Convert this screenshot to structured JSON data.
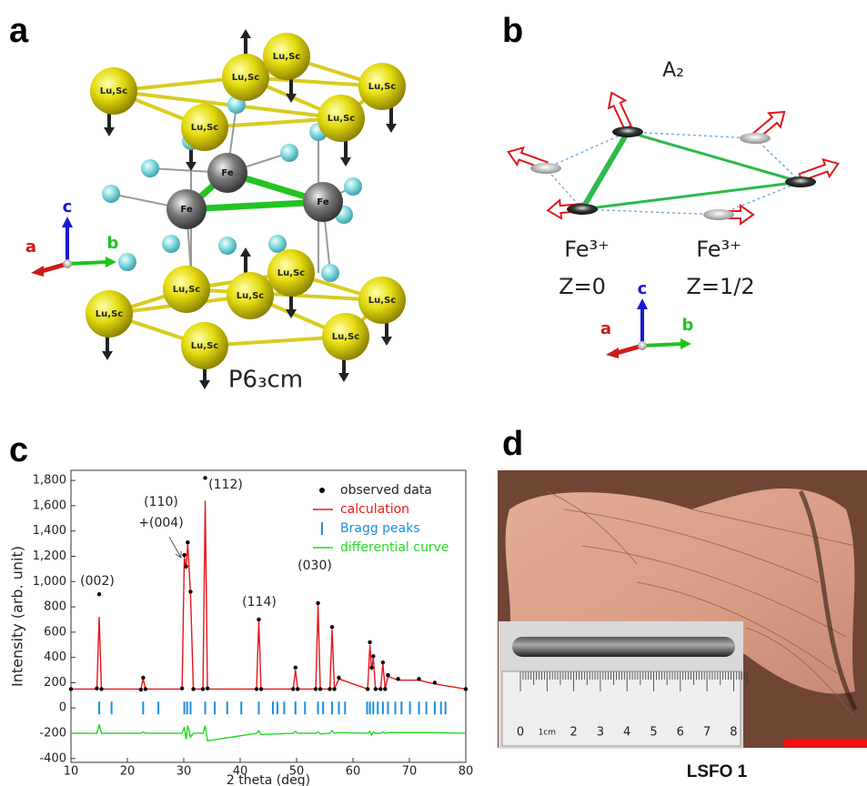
{
  "panels": {
    "a": {
      "letter": "a",
      "site_label": "Lu,Sc",
      "fe_label": "Fe",
      "axes": {
        "c": "c",
        "a": "a",
        "b": "b"
      },
      "space_group": "P6₃cm"
    },
    "b": {
      "letter": "b",
      "mode": "A₂",
      "ion": "Fe³⁺",
      "layers": [
        "Z=0",
        "Z=1/2"
      ],
      "axes": {
        "c": "c",
        "a": "a",
        "b": "b"
      }
    },
    "c": {
      "letter": "c"
    },
    "d": {
      "letter": "d",
      "ruler_labels": [
        "0",
        "1cm",
        "2",
        "3",
        "4",
        "5",
        "6",
        "7",
        "8"
      ],
      "caption": "LSFO 1"
    }
  },
  "chart_data": {
    "type": "line",
    "x_label": "2 theta (deg)",
    "y_label": "Intensity (arb. unit)",
    "x": [
      10,
      14.6,
      15,
      15.4,
      22.4,
      22.8,
      23.2,
      29.7,
      30.1,
      30.4,
      30.7,
      31.2,
      31.7,
      33.4,
      33.8,
      34.2,
      42.9,
      43.3,
      43.7,
      49.4,
      49.8,
      50.2,
      53.4,
      53.8,
      54.2,
      55.9,
      56.3,
      56.7,
      57.5,
      62.6,
      63.0,
      63.3,
      63.6,
      64.0,
      64.9,
      65.3,
      65.7,
      66.2,
      68.0,
      71.7,
      74.5,
      80
    ],
    "series": [
      {
        "name": "observed data",
        "type": "scatter",
        "color": "#000000",
        "values": [
          150,
          155,
          900,
          150,
          145,
          240,
          150,
          155,
          1210,
          1120,
          1310,
          920,
          150,
          150,
          1820,
          155,
          150,
          700,
          150,
          150,
          320,
          150,
          150,
          830,
          150,
          150,
          640,
          150,
          240,
          150,
          520,
          320,
          410,
          150,
          150,
          360,
          150,
          260,
          230,
          230,
          200,
          150
        ]
      },
      {
        "name": "calculation",
        "type": "line",
        "color": "#e8161b",
        "values": [
          150,
          150,
          720,
          150,
          150,
          230,
          150,
          150,
          1200,
          1100,
          1300,
          900,
          150,
          150,
          1640,
          150,
          150,
          690,
          150,
          150,
          300,
          150,
          150,
          820,
          150,
          150,
          620,
          150,
          230,
          150,
          500,
          300,
          400,
          150,
          150,
          350,
          150,
          250,
          220,
          220,
          190,
          150
        ]
      },
      {
        "name": "Bragg peaks",
        "type": "ticks",
        "color": "#1b8fe3",
        "x": [
          15,
          17.2,
          22.8,
          25.5,
          30.1,
          30.6,
          31.2,
          33.8,
          35.5,
          37.7,
          40.2,
          43.3,
          45.8,
          46.6,
          47.8,
          49.8,
          51.5,
          53.8,
          54.7,
          56.3,
          57.5,
          58.6,
          62.5,
          63.0,
          63.6,
          64.4,
          65.3,
          66.2,
          67.5,
          68.6,
          70.1,
          71.7,
          73.0,
          74.5,
          75.6,
          76.4
        ],
        "values": [
          0,
          0,
          0,
          0,
          0,
          0,
          0,
          0,
          0,
          0,
          0,
          0,
          0,
          0,
          0,
          0,
          0,
          0,
          0,
          0,
          0,
          0,
          0,
          0,
          0,
          0,
          0,
          0,
          0,
          0,
          0,
          0,
          0,
          0,
          0,
          0
        ]
      },
      {
        "name": "differential curve",
        "type": "line",
        "color": "#22d822",
        "values": [
          -200,
          -200,
          -130,
          -200,
          -200,
          -190,
          -200,
          -200,
          -150,
          -250,
          -140,
          -230,
          -200,
          -200,
          -140,
          -260,
          -200,
          -180,
          -210,
          -200,
          -185,
          -200,
          -200,
          -190,
          -205,
          -200,
          -180,
          -200,
          -195,
          -200,
          -185,
          -215,
          -190,
          -200,
          -200,
          -190,
          -200,
          -195,
          -195,
          -195,
          -195,
          -200
        ]
      }
    ],
    "annotations": [
      "(002)",
      "(110)",
      "+(004)",
      "(112)",
      "(114)",
      "(030)"
    ],
    "xlim": [
      10,
      80
    ],
    "xticks": [
      10,
      20,
      30,
      40,
      50,
      60,
      70,
      80
    ],
    "ylim": [
      -430,
      1880
    ],
    "yticks": [
      -400,
      -200,
      0,
      200,
      400,
      600,
      800,
      {
        "value": 1000,
        "label": "1,000"
      },
      {
        "value": 1200,
        "label": "1,200"
      },
      {
        "value": 1400,
        "label": "1,400"
      },
      {
        "value": 1600,
        "label": "1,600"
      },
      {
        "value": 1800,
        "label": "1,800"
      }
    ],
    "grid": false,
    "legend": "upper right"
  }
}
